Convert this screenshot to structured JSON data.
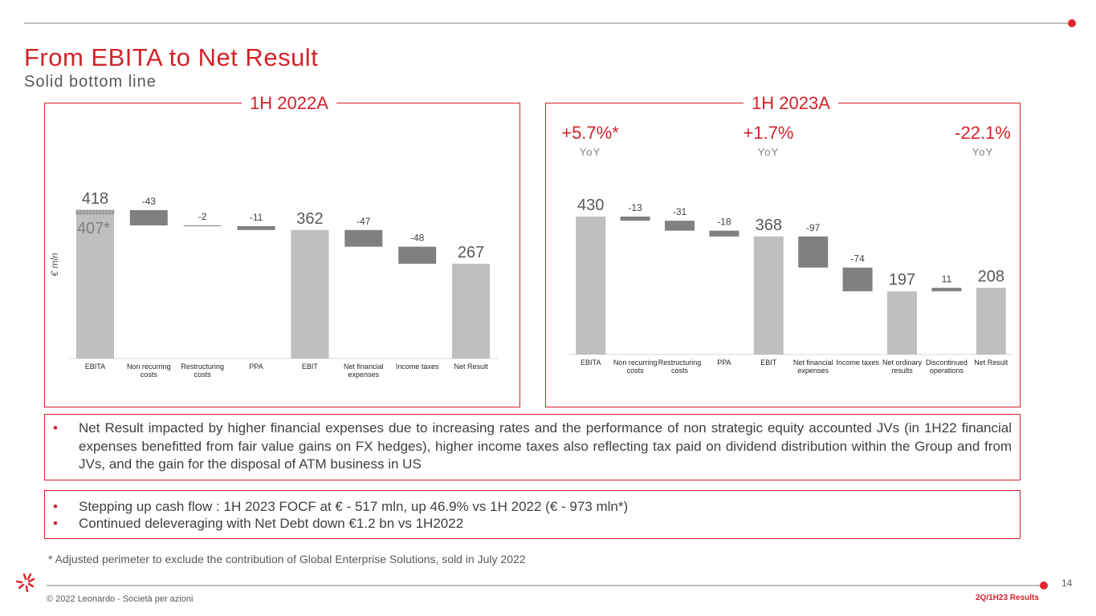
{
  "header": {
    "title": "From EBITA to Net Result",
    "subtitle": "Solid bottom line"
  },
  "chart_data": [
    {
      "type": "waterfall",
      "title": "1H 2022A",
      "y_label": "€ mln",
      "categories": [
        "EBITA",
        "Non recurring costs",
        "Restructuring costs",
        "PPA",
        "EBIT",
        "Net financial expenses",
        "Income taxes",
        "Net Result"
      ],
      "values": [
        418,
        -43,
        -2,
        -11,
        362,
        -47,
        -48,
        267
      ],
      "totals": [
        0,
        4,
        7
      ],
      "total_color": "#bfbfbf",
      "delta_color": "#808080",
      "restated": {
        "value": 407,
        "label": "407*"
      }
    },
    {
      "type": "waterfall",
      "title": "1H 2023A",
      "categories": [
        "EBITA",
        "Non recurring costs",
        "Restructuring costs",
        "PPA",
        "EBIT",
        "Net financial expenses",
        "Income taxes",
        "Net ordinary results",
        "Discontinued operations",
        "Net Result"
      ],
      "values": [
        430,
        -13,
        -31,
        -18,
        368,
        -97,
        -74,
        197,
        11,
        208
      ],
      "totals": [
        0,
        4,
        7,
        9
      ],
      "total_color": "#bfbfbf",
      "delta_color": "#808080",
      "growth": [
        {
          "label": "+5.7%*",
          "note": "YoY"
        },
        {
          "label": "+1.7%",
          "note": "YoY"
        },
        {
          "label": "-22.1%",
          "note": "YoY"
        }
      ]
    }
  ],
  "bullets": [
    "Net Result impacted by higher financial expenses due to increasing rates and the performance of non strategic equity accounted JVs (in 1H22 financial expenses benefitted from fair value gains on FX hedges), higher income taxes also reflecting tax paid on dividend distribution within the Group and from JVs, and the gain for the disposal of ATM business in US"
  ],
  "highlights": [
    "Stepping up cash flow : 1H 2023 FOCF at € - 517 mln, up 46.9% vs 1H 2022 (€ - 973 mln*)",
    "Continued deleveraging with Net Debt down €1.2 bn vs 1H2022"
  ],
  "footnote": "* Adjusted perimeter to exclude the contribution of Global Enterprise Solutions, sold in July 2022",
  "footer": {
    "copyright": "© 2022 Leonardo - Società per azioni",
    "page": 14,
    "report": "2Q/1H23 Results"
  }
}
